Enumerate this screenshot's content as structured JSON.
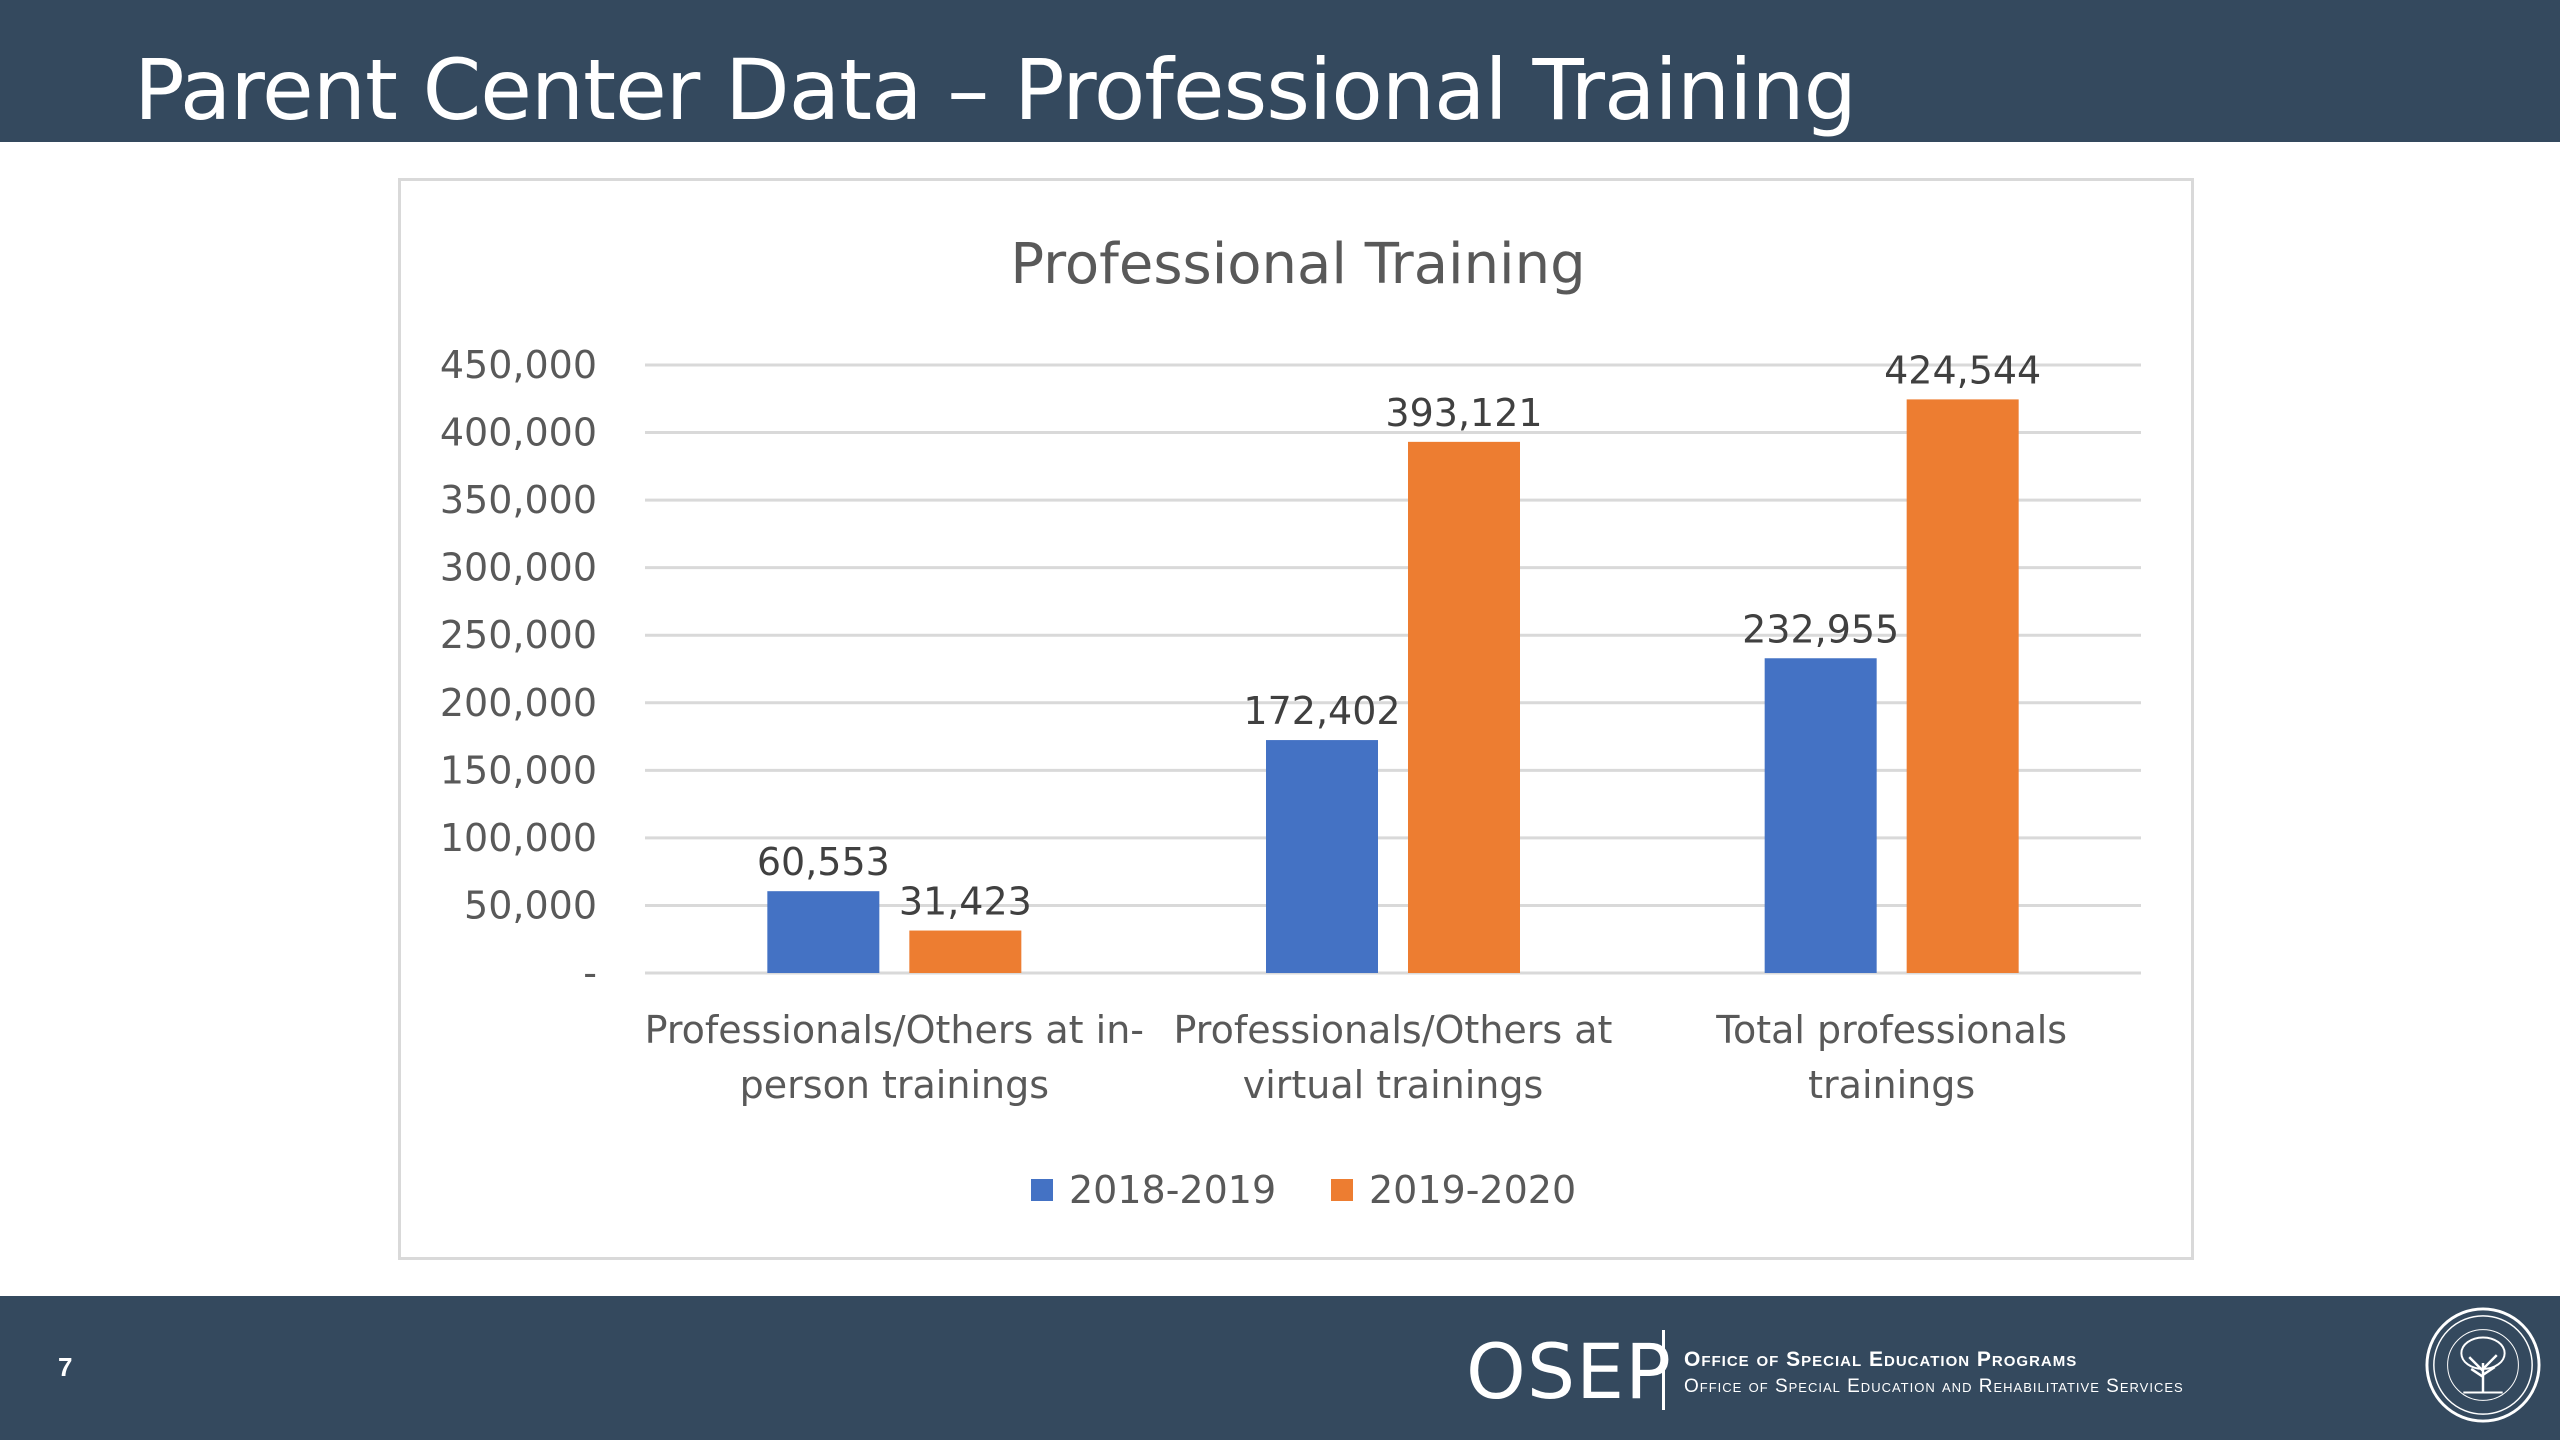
{
  "slide": {
    "title": "Parent Center Data – Professional Training",
    "slide_number": "7"
  },
  "footer": {
    "logo_text": "OSEP",
    "org_line_1": "Office of Special Education Programs",
    "org_line_2": "Office of Special Education and Rehabilitative Services",
    "seal_icon": "department-of-education-seal-icon"
  },
  "colors": {
    "band": "#34495e",
    "series_1": "#4472c4",
    "series_2": "#ed7d31"
  },
  "chart_data": {
    "type": "bar",
    "title": "Professional Training",
    "categories": [
      [
        "Professionals/Others at in-",
        "person trainings"
      ],
      [
        "Professionals/Others at",
        "virtual trainings"
      ],
      [
        "Total professionals",
        "trainings"
      ]
    ],
    "series": [
      {
        "name": "2018-2019",
        "color": "#4472c4",
        "values": [
          60553,
          172402,
          232955
        ],
        "labels": [
          "60,553",
          "172,402",
          "232,955"
        ]
      },
      {
        "name": "2019-2020",
        "color": "#ed7d31",
        "values": [
          31423,
          393121,
          424544
        ],
        "labels": [
          "31,423",
          "393,121",
          "424,544"
        ]
      }
    ],
    "ylim": [
      0,
      450000
    ],
    "yticks": [
      0,
      50000,
      100000,
      150000,
      200000,
      250000,
      300000,
      350000,
      400000,
      450000
    ],
    "ytick_labels": [
      "-",
      "50,000",
      "100,000",
      "150,000",
      "200,000",
      "250,000",
      "300,000",
      "350,000",
      "400,000",
      "450,000"
    ],
    "grid": true,
    "legend_position": "bottom"
  }
}
